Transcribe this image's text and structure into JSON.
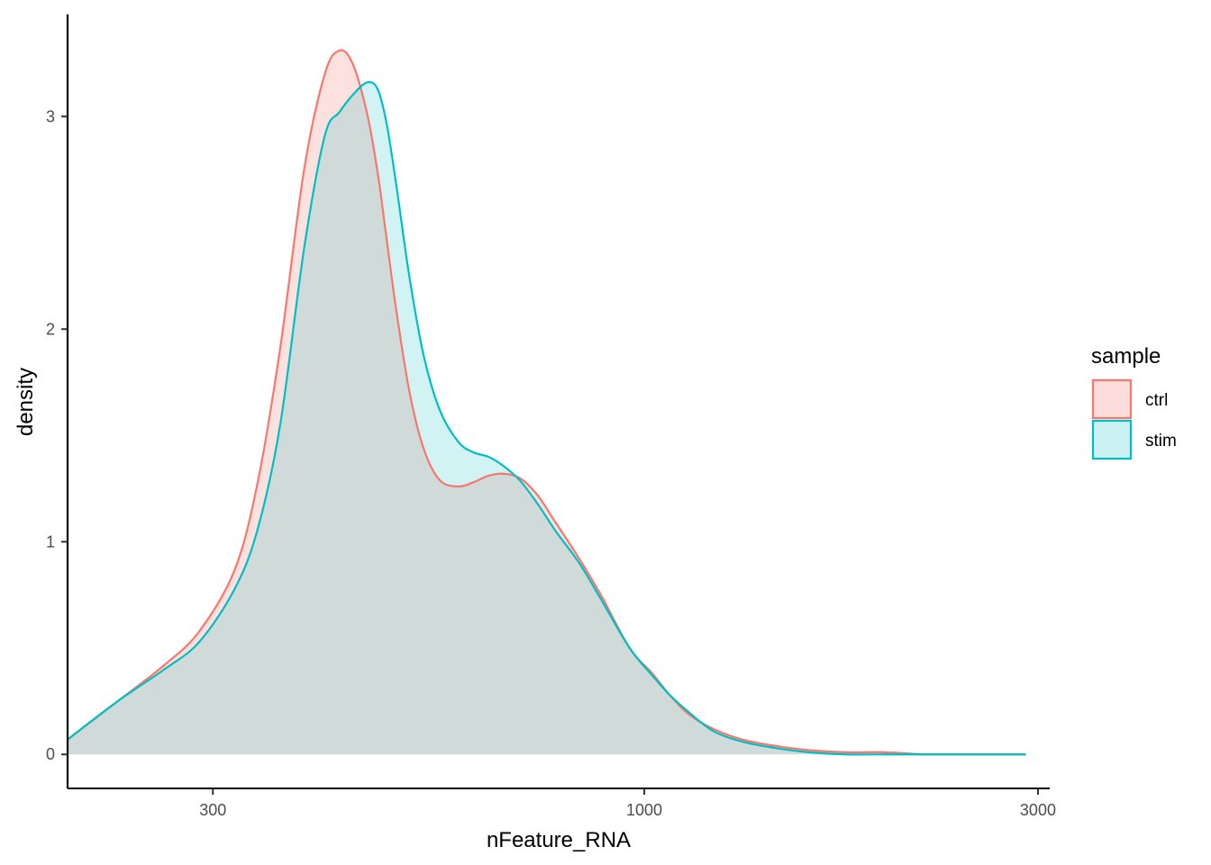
{
  "chart_data": {
    "type": "area",
    "xlabel": "nFeature_RNA",
    "ylabel": "density",
    "x_scale": "log10",
    "xlim": [
      200,
      3100
    ],
    "ylim": [
      -0.16,
      3.48
    ],
    "x_ticks": [
      300,
      1000,
      3000
    ],
    "x_tick_labels": [
      "300",
      "1000",
      "3000"
    ],
    "y_ticks": [
      0,
      1,
      2,
      3
    ],
    "y_tick_labels": [
      "0",
      "1",
      "2",
      "3"
    ],
    "grid": false,
    "vline_x": 200,
    "legend": {
      "title": "sample",
      "position": "right"
    },
    "series": [
      {
        "name": "ctrl",
        "color": "#F8766D",
        "fill": "#F8766D",
        "fill_opacity": 0.22,
        "x": [
          200,
          230,
          262,
          289,
          319,
          340,
          362,
          387,
          410,
          427,
          443,
          461,
          475,
          487,
          500,
          519,
          540,
          565,
          595,
          621,
          647,
          673,
          706,
          742,
          781,
          834,
          886,
          960,
          1023,
          1073,
          1131,
          1212,
          1314,
          1442,
          1583,
          1757,
          1955,
          2193,
          2428,
          2700,
          2900
        ],
        "y": [
          0.07,
          0.25,
          0.42,
          0.58,
          0.87,
          1.28,
          1.91,
          2.75,
          3.2,
          3.31,
          3.25,
          3.02,
          2.74,
          2.43,
          2.1,
          1.71,
          1.44,
          1.29,
          1.26,
          1.28,
          1.31,
          1.32,
          1.3,
          1.22,
          1.09,
          0.92,
          0.75,
          0.5,
          0.38,
          0.28,
          0.19,
          0.12,
          0.07,
          0.04,
          0.02,
          0.01,
          0.01,
          0.0,
          0.0,
          0.0,
          0.0
        ]
      },
      {
        "name": "stim",
        "color": "#00BFC4",
        "fill": "#00BFC4",
        "fill_opacity": 0.18,
        "x": [
          200,
          230,
          262,
          289,
          319,
          340,
          362,
          387,
          410,
          427,
          443,
          461,
          475,
          487,
          500,
          519,
          540,
          565,
          595,
          621,
          647,
          673,
          706,
          742,
          781,
          834,
          886,
          960,
          1023,
          1073,
          1131,
          1212,
          1314,
          1442,
          1583,
          1757,
          1955,
          2193,
          2428,
          2700,
          2900
        ],
        "y": [
          0.07,
          0.25,
          0.4,
          0.53,
          0.78,
          1.06,
          1.55,
          2.38,
          2.91,
          3.02,
          3.1,
          3.16,
          3.13,
          2.97,
          2.69,
          2.25,
          1.88,
          1.62,
          1.47,
          1.42,
          1.4,
          1.36,
          1.29,
          1.18,
          1.05,
          0.9,
          0.73,
          0.5,
          0.37,
          0.28,
          0.2,
          0.11,
          0.06,
          0.03,
          0.01,
          0.0,
          0.0,
          0.0,
          0.0,
          0.0,
          0.0
        ]
      }
    ]
  }
}
